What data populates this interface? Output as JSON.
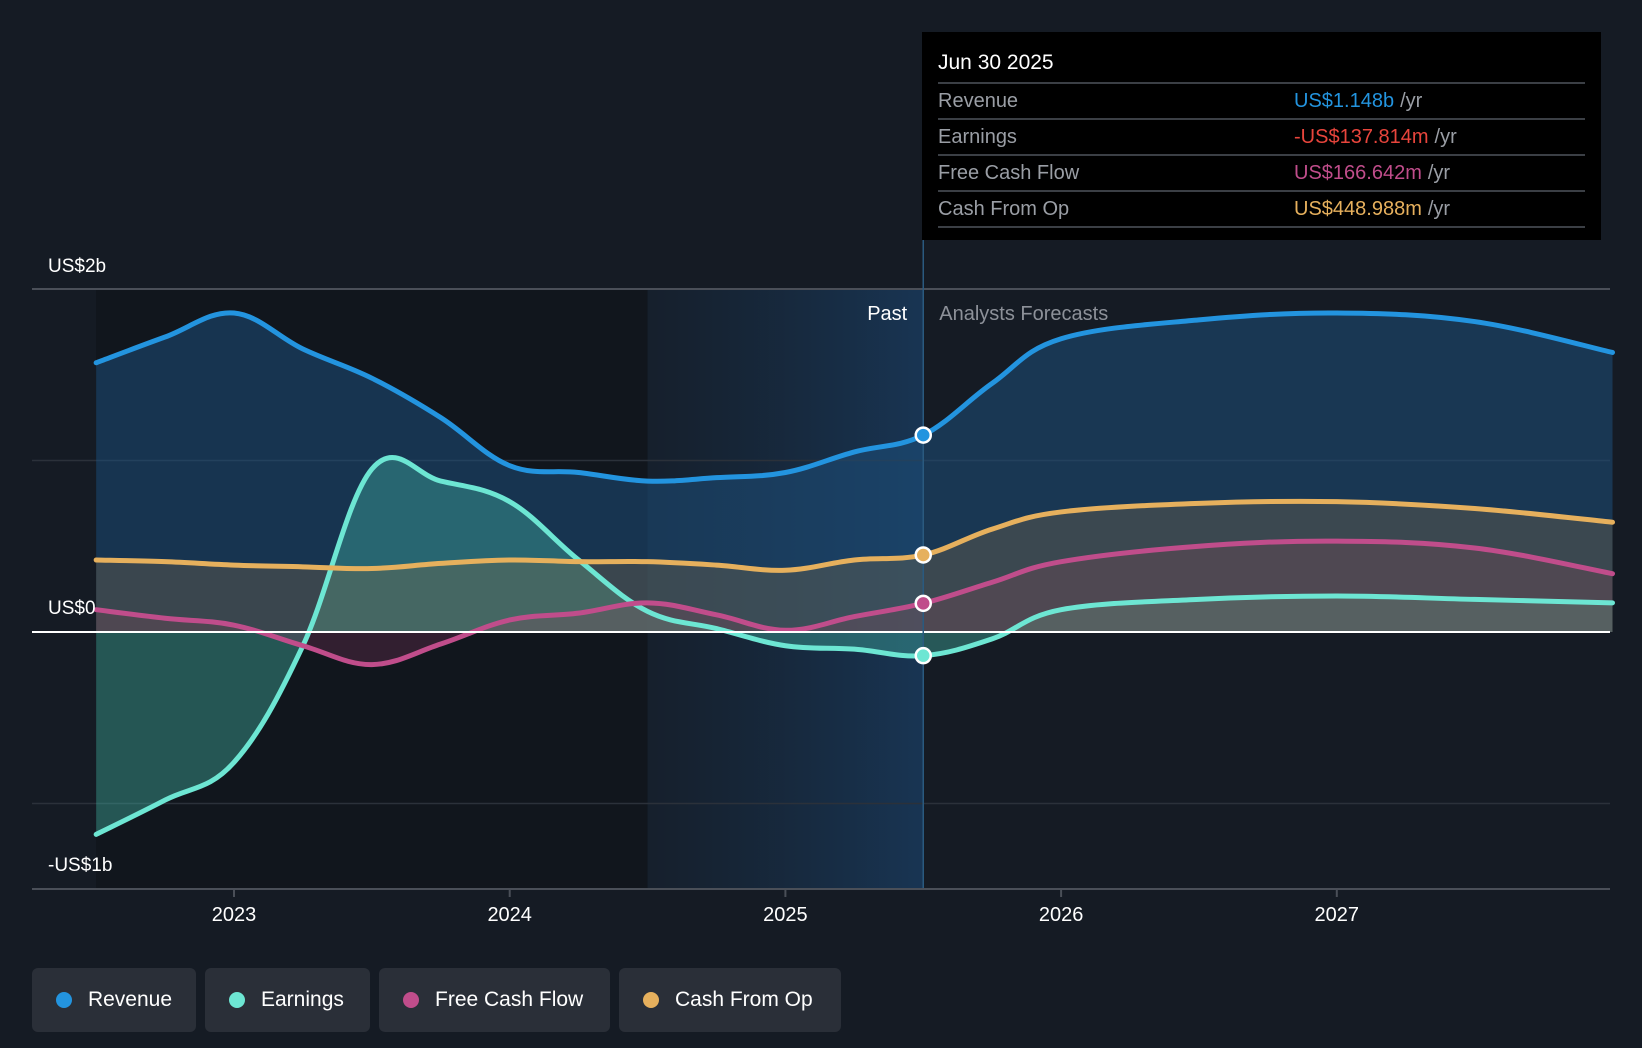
{
  "chart_data": {
    "type": "area",
    "title": "",
    "xlabel": "",
    "ylabel": "",
    "y_unit": "US$ billions",
    "ylim": [
      -1.5,
      2.0
    ],
    "yticks": [
      {
        "value": 2,
        "label": "US$2b"
      },
      {
        "value": 0,
        "label": "US$0"
      },
      {
        "value": -1,
        "label": "-US$1b"
      }
    ],
    "gridlines_at": [
      2,
      1,
      0,
      -1
    ],
    "xlim": [
      2022.5,
      2028.0
    ],
    "xticks": [
      {
        "value": 2023,
        "label": "2023"
      },
      {
        "value": 2024,
        "label": "2024"
      },
      {
        "value": 2025,
        "label": "2025"
      },
      {
        "value": 2026,
        "label": "2026"
      },
      {
        "value": 2027,
        "label": "2027"
      }
    ],
    "past_label": "Past",
    "forecast_label": "Analysts Forecasts",
    "divider_x": 2025.5,
    "highlight_start_x": 2024.5,
    "legend_position": "bottom-left",
    "series": [
      {
        "name": "Revenue",
        "color": "#2394df",
        "points": [
          [
            2022.5,
            1.57
          ],
          [
            2022.75,
            1.72
          ],
          [
            2023.0,
            1.86
          ],
          [
            2023.25,
            1.65
          ],
          [
            2023.5,
            1.48
          ],
          [
            2023.75,
            1.25
          ],
          [
            2024.0,
            0.97
          ],
          [
            2024.25,
            0.93
          ],
          [
            2024.5,
            0.88
          ],
          [
            2024.75,
            0.9
          ],
          [
            2025.0,
            0.93
          ],
          [
            2025.25,
            1.05
          ],
          [
            2025.5,
            1.148
          ],
          [
            2025.75,
            1.45
          ],
          [
            2026.0,
            1.71
          ],
          [
            2026.5,
            1.82
          ],
          [
            2027.0,
            1.86
          ],
          [
            2027.5,
            1.81
          ],
          [
            2028.0,
            1.63
          ]
        ]
      },
      {
        "name": "Earnings",
        "color": "#6de6d3",
        "points": [
          [
            2022.5,
            -1.18
          ],
          [
            2022.75,
            -0.98
          ],
          [
            2023.0,
            -0.76
          ],
          [
            2023.25,
            -0.08
          ],
          [
            2023.5,
            0.95
          ],
          [
            2023.75,
            0.88
          ],
          [
            2024.0,
            0.76
          ],
          [
            2024.25,
            0.42
          ],
          [
            2024.5,
            0.12
          ],
          [
            2024.75,
            0.02
          ],
          [
            2025.0,
            -0.08
          ],
          [
            2025.25,
            -0.1
          ],
          [
            2025.5,
            -0.138
          ],
          [
            2025.75,
            -0.04
          ],
          [
            2026.0,
            0.13
          ],
          [
            2026.5,
            0.19
          ],
          [
            2027.0,
            0.21
          ],
          [
            2027.5,
            0.19
          ],
          [
            2028.0,
            0.17
          ]
        ]
      },
      {
        "name": "Free Cash Flow",
        "color": "#c04d8b",
        "points": [
          [
            2022.5,
            0.13
          ],
          [
            2022.75,
            0.08
          ],
          [
            2023.0,
            0.04
          ],
          [
            2023.25,
            -0.08
          ],
          [
            2023.5,
            -0.19
          ],
          [
            2023.75,
            -0.07
          ],
          [
            2024.0,
            0.07
          ],
          [
            2024.25,
            0.11
          ],
          [
            2024.5,
            0.17
          ],
          [
            2024.75,
            0.1
          ],
          [
            2025.0,
            0.01
          ],
          [
            2025.25,
            0.09
          ],
          [
            2025.5,
            0.167
          ],
          [
            2025.75,
            0.29
          ],
          [
            2026.0,
            0.41
          ],
          [
            2026.5,
            0.5
          ],
          [
            2027.0,
            0.53
          ],
          [
            2027.5,
            0.49
          ],
          [
            2028.0,
            0.34
          ]
        ]
      },
      {
        "name": "Cash From Op",
        "color": "#e6b05d",
        "points": [
          [
            2022.5,
            0.42
          ],
          [
            2022.75,
            0.41
          ],
          [
            2023.0,
            0.39
          ],
          [
            2023.25,
            0.38
          ],
          [
            2023.5,
            0.37
          ],
          [
            2023.75,
            0.4
          ],
          [
            2024.0,
            0.42
          ],
          [
            2024.25,
            0.41
          ],
          [
            2024.5,
            0.41
          ],
          [
            2024.75,
            0.39
          ],
          [
            2025.0,
            0.36
          ],
          [
            2025.25,
            0.42
          ],
          [
            2025.5,
            0.449
          ],
          [
            2025.75,
            0.6
          ],
          [
            2026.0,
            0.7
          ],
          [
            2026.5,
            0.75
          ],
          [
            2027.0,
            0.76
          ],
          [
            2027.5,
            0.72
          ],
          [
            2028.0,
            0.64
          ]
        ]
      }
    ]
  },
  "tooltip": {
    "date": "Jun 30 2025",
    "unit": "/yr",
    "rows": [
      {
        "label": "Revenue",
        "value": "US$1.148b",
        "color": "#2394df"
      },
      {
        "label": "Earnings",
        "value": "-US$137.814m",
        "color": "#e8453c"
      },
      {
        "label": "Free Cash Flow",
        "value": "US$166.642m",
        "color": "#c04d8b"
      },
      {
        "label": "Cash From Op",
        "value": "US$448.988m",
        "color": "#e6b05d"
      }
    ]
  },
  "legend": {
    "items": [
      {
        "label": "Revenue",
        "color": "#2394df"
      },
      {
        "label": "Earnings",
        "color": "#6de6d3"
      },
      {
        "label": "Free Cash Flow",
        "color": "#c04d8b"
      },
      {
        "label": "Cash From Op",
        "color": "#e6b05d"
      }
    ]
  }
}
